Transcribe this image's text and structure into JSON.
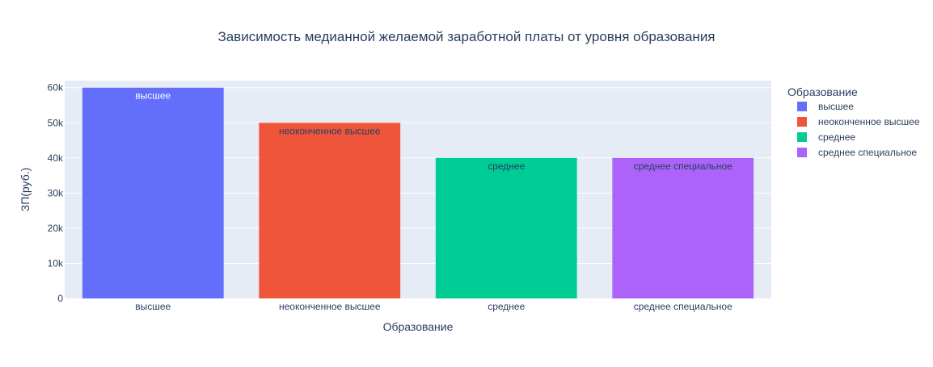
{
  "chart_data": {
    "type": "bar",
    "title": "Зависимость медианной желаемой заработной платы от уровня образования",
    "xlabel": "Образование",
    "ylabel": "ЗП(руб.)",
    "categories": [
      "высшее",
      "неоконченное высшее",
      "среднее",
      "среднее специальное"
    ],
    "values": [
      60000,
      50000,
      40000,
      40000
    ],
    "bar_labels": [
      "высшее",
      "неоконченное высшее",
      "среднее",
      "среднее специальное"
    ],
    "colors": [
      "#636efa",
      "#ef553b",
      "#00cc96",
      "#ab63fa"
    ],
    "ylim": [
      0,
      62000
    ],
    "yticks": [
      0,
      10000,
      20000,
      30000,
      40000,
      50000,
      60000
    ],
    "ytick_labels": [
      "0",
      "10k",
      "20k",
      "30k",
      "40k",
      "50k",
      "60k"
    ],
    "grid": true,
    "legend": {
      "title": "Образование",
      "position": "right",
      "entries": [
        "высшее",
        "неоконченное высшее",
        "среднее",
        "среднее специальное"
      ]
    }
  },
  "colors": {
    "plot_background": "#e5ecf6",
    "grid": "#ffffff",
    "text": "#2a3f5f",
    "tick_text": "#2a3f5f"
  }
}
